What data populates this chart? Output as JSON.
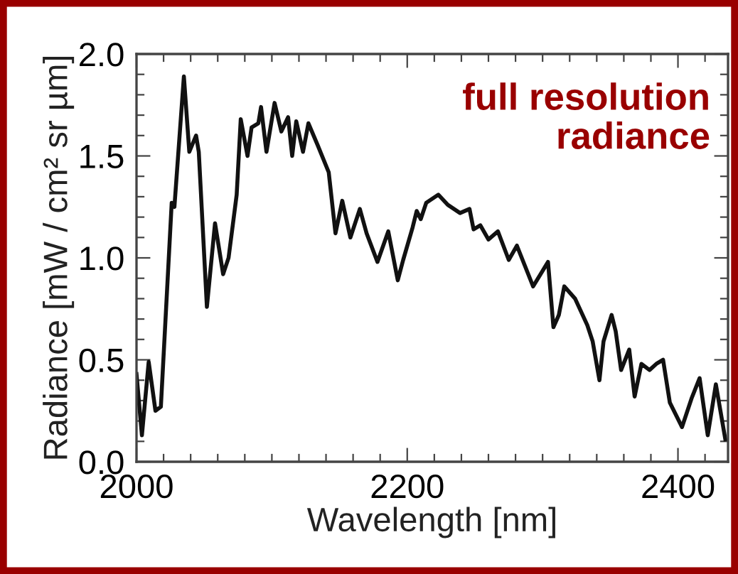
{
  "chart_data": {
    "type": "line",
    "xlabel": "Wavelength [nm]",
    "ylabel": "Radiance [mW / cm² sr µm]",
    "annotations": [
      "full resolution\nradiance"
    ],
    "xlim": [
      2000,
      2437
    ],
    "ylim": [
      0,
      2.0
    ],
    "xticks": [
      2000,
      {
        "value": 2020,
        "label": null
      },
      {
        "value": 2040,
        "label": null
      },
      {
        "value": 2060,
        "label": null
      },
      {
        "value": 2080,
        "label": null
      },
      {
        "value": 2100,
        "label": null
      },
      {
        "value": 2120,
        "label": null
      },
      {
        "value": 2140,
        "label": null
      },
      {
        "value": 2160,
        "label": null
      },
      {
        "value": 2180,
        "label": null
      },
      2200,
      {
        "value": 2220,
        "label": null
      },
      {
        "value": 2240,
        "label": null
      },
      {
        "value": 2260,
        "label": null
      },
      {
        "value": 2280,
        "label": null
      },
      {
        "value": 2300,
        "label": null
      },
      {
        "value": 2320,
        "label": null
      },
      {
        "value": 2340,
        "label": null
      },
      {
        "value": 2360,
        "label": null
      },
      {
        "value": 2380,
        "label": null
      },
      2400,
      {
        "value": 2420,
        "label": null
      }
    ],
    "yticks": [
      {
        "value": 0,
        "label": "0.0"
      },
      {
        "value": 0.1,
        "label": null
      },
      {
        "value": 0.2,
        "label": null
      },
      {
        "value": 0.3,
        "label": null
      },
      {
        "value": 0.4,
        "label": null
      },
      {
        "value": 0.5,
        "label": "0.5"
      },
      {
        "value": 0.6,
        "label": null
      },
      {
        "value": 0.7,
        "label": null
      },
      {
        "value": 0.8,
        "label": null
      },
      {
        "value": 0.9,
        "label": null
      },
      {
        "value": 1.0,
        "label": "1.0"
      },
      {
        "value": 1.1,
        "label": null
      },
      {
        "value": 1.2,
        "label": null
      },
      {
        "value": 1.3,
        "label": null
      },
      {
        "value": 1.4,
        "label": null
      },
      {
        "value": 1.5,
        "label": "1.5"
      },
      {
        "value": 1.6,
        "label": null
      },
      {
        "value": 1.7,
        "label": null
      },
      {
        "value": 1.8,
        "label": null
      },
      {
        "value": 1.9,
        "label": null
      },
      {
        "value": 2.0,
        "label": "2.0"
      }
    ],
    "grid": false,
    "marker": "none",
    "line_style": "solid",
    "series": [
      {
        "color": "#111111",
        "x": [
          2000,
          2004,
          2009,
          2014,
          2018,
          2026,
          2028,
          2035,
          2039,
          2044,
          2046,
          2052,
          2058,
          2064,
          2068,
          2074,
          2077,
          2082,
          2085,
          2090,
          2092,
          2096,
          2102,
          2107,
          2112,
          2115,
          2118,
          2123,
          2127,
          2134,
          2142,
          2147,
          2152,
          2158,
          2165,
          2170,
          2178,
          2186,
          2193,
          2197,
          2204,
          2207,
          2210,
          2214,
          2223,
          2230,
          2239,
          2246,
          2249,
          2254,
          2260,
          2267,
          2275,
          2281,
          2293,
          2304,
          2308,
          2312,
          2316,
          2324,
          2333,
          2337,
          2342,
          2345,
          2351,
          2354,
          2358,
          2364,
          2368,
          2373,
          2379,
          2384,
          2389,
          2394,
          2403,
          2410,
          2416,
          2422,
          2428,
          2435
        ],
        "values": [
          0.43,
          0.13,
          0.49,
          0.25,
          0.27,
          1.27,
          1.25,
          1.89,
          1.52,
          1.6,
          1.52,
          0.76,
          1.17,
          0.92,
          1.0,
          1.31,
          1.68,
          1.5,
          1.64,
          1.66,
          1.74,
          1.52,
          1.76,
          1.62,
          1.69,
          1.5,
          1.67,
          1.52,
          1.66,
          1.55,
          1.42,
          1.12,
          1.28,
          1.1,
          1.24,
          1.12,
          0.98,
          1.13,
          0.89,
          0.99,
          1.15,
          1.23,
          1.19,
          1.27,
          1.31,
          1.26,
          1.22,
          1.24,
          1.14,
          1.16,
          1.09,
          1.13,
          0.99,
          1.06,
          0.86,
          0.98,
          0.66,
          0.72,
          0.86,
          0.8,
          0.67,
          0.59,
          0.4,
          0.59,
          0.72,
          0.64,
          0.45,
          0.55,
          0.32,
          0.48,
          0.45,
          0.48,
          0.5,
          0.29,
          0.17,
          0.31,
          0.41,
          0.13,
          0.38,
          0.11
        ]
      }
    ]
  }
}
